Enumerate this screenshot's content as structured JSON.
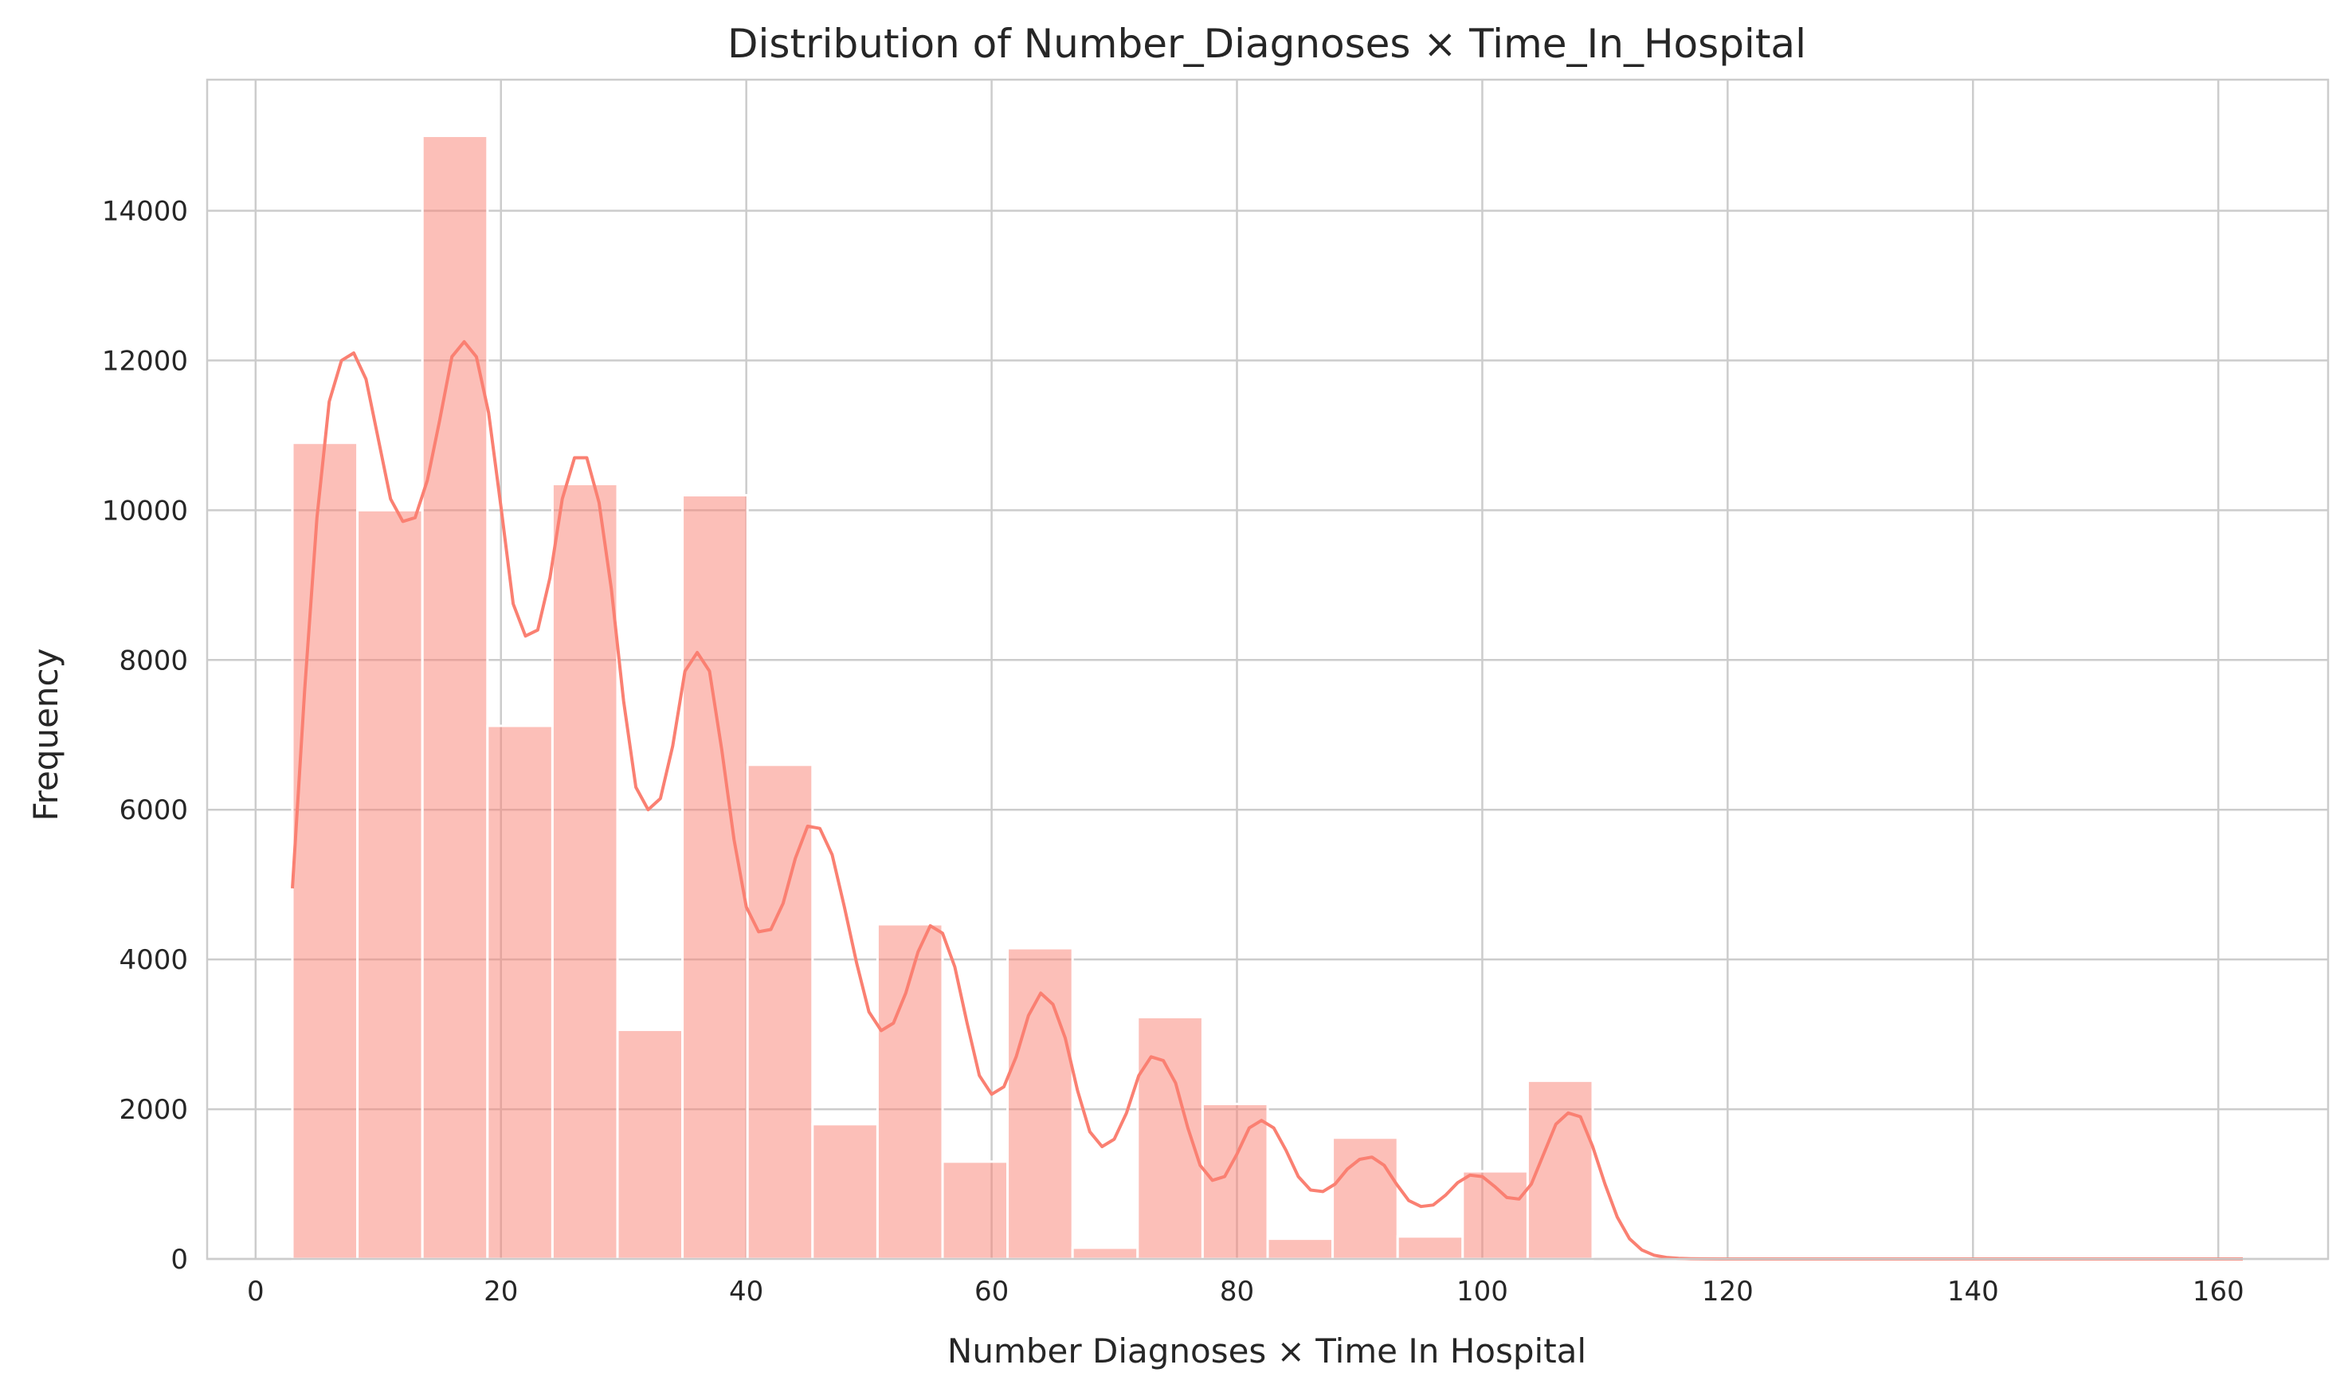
{
  "chart_data": {
    "type": "bar",
    "subtype": "histogram-with-kde",
    "title": "Distribution of Number_Diagnoses × Time_In_Hospital",
    "xlabel": "Number Diagnoses × Time In Hospital",
    "ylabel": "Frequency",
    "xlim": [
      -3.95,
      168.95
    ],
    "ylim": [
      0,
      15750
    ],
    "x_ticks": [
      0,
      20,
      40,
      60,
      80,
      100,
      120,
      140,
      160
    ],
    "y_ticks": [
      0,
      2000,
      4000,
      6000,
      8000,
      10000,
      12000,
      14000
    ],
    "grid": true,
    "bin_edges": [
      3.0,
      8.3,
      13.6,
      18.9,
      24.2,
      29.5,
      34.8,
      40.1,
      45.4,
      50.7,
      56.0,
      61.3,
      66.6,
      71.9,
      77.2,
      82.5,
      87.8,
      93.1,
      98.4,
      103.7,
      109.0,
      114.3,
      119.6,
      124.9,
      130.2,
      135.5,
      140.8,
      146.1,
      151.4,
      156.7,
      162.0
    ],
    "values": [
      10900,
      10000,
      15000,
      7120,
      10350,
      3060,
      10200,
      6600,
      1800,
      4470,
      1300,
      4150,
      150,
      3230,
      2070,
      270,
      1620,
      300,
      1170,
      2380,
      0,
      0,
      0,
      0,
      0,
      0,
      0,
      0,
      0,
      0
    ],
    "kde": {
      "x": [
        3.0,
        4.0,
        5.0,
        6.0,
        7.0,
        8.0,
        9.0,
        10.0,
        11.0,
        12.0,
        13.0,
        14.0,
        15.0,
        16.0,
        17.0,
        18.0,
        19.0,
        20.0,
        21.0,
        22.0,
        23.0,
        24.0,
        25.0,
        26.0,
        27.0,
        28.0,
        29.0,
        30.0,
        31.0,
        32.0,
        33.0,
        34.0,
        35.0,
        36.0,
        37.0,
        38.0,
        39.0,
        40.0,
        41.0,
        42.0,
        43.0,
        44.0,
        45.0,
        46.0,
        47.0,
        48.0,
        49.0,
        50.0,
        51.0,
        52.0,
        53.0,
        54.0,
        55.0,
        56.0,
        57.0,
        58.0,
        59.0,
        60.0,
        61.0,
        62.0,
        63.0,
        64.0,
        65.0,
        66.0,
        67.0,
        68.0,
        69.0,
        70.0,
        71.0,
        72.0,
        73.0,
        74.0,
        75.0,
        76.0,
        77.0,
        78.0,
        79.0,
        80.0,
        81.0,
        82.0,
        83.0,
        84.0,
        85.0,
        86.0,
        87.0,
        88.0,
        89.0,
        90.0,
        91.0,
        92.0,
        93.0,
        94.0,
        95.0,
        96.0,
        97.0,
        98.0,
        99.0,
        100.0,
        101.0,
        102.0,
        103.0,
        104.0,
        105.0,
        106.0,
        107.0,
        108.0,
        109.0,
        110.0,
        111.0,
        112.0,
        113.0,
        114.0,
        115.0,
        116.0,
        117.0,
        118.0,
        120.0,
        125.0,
        130.0,
        140.0,
        150.0,
        162.0
      ],
      "y": [
        4950,
        7600,
        9900,
        11450,
        12000,
        12100,
        11750,
        10950,
        10150,
        9850,
        9900,
        10400,
        11200,
        12050,
        12250,
        12050,
        11300,
        10050,
        8750,
        8320,
        8400,
        9100,
        10150,
        10700,
        10700,
        10100,
        8950,
        7450,
        6300,
        6000,
        6150,
        6850,
        7850,
        8100,
        7850,
        6800,
        5600,
        4700,
        4370,
        4400,
        4750,
        5350,
        5780,
        5750,
        5400,
        4700,
        3950,
        3300,
        3050,
        3150,
        3550,
        4100,
        4450,
        4350,
        3900,
        3150,
        2450,
        2200,
        2300,
        2700,
        3250,
        3550,
        3400,
        2950,
        2250,
        1700,
        1500,
        1600,
        1950,
        2450,
        2700,
        2650,
        2350,
        1750,
        1250,
        1050,
        1100,
        1400,
        1750,
        1850,
        1750,
        1450,
        1100,
        920,
        900,
        1000,
        1200,
        1330,
        1360,
        1250,
        1000,
        780,
        700,
        720,
        850,
        1020,
        1120,
        1100,
        970,
        820,
        800,
        1000,
        1400,
        1800,
        1950,
        1900,
        1500,
        1000,
        560,
        270,
        120,
        50,
        20,
        8,
        3,
        1,
        0,
        0,
        0,
        0,
        0,
        0
      ]
    },
    "colors": {
      "bar_fill": "#fa8072",
      "bar_opacity": 0.5,
      "kde_line": "#fa8072"
    }
  }
}
